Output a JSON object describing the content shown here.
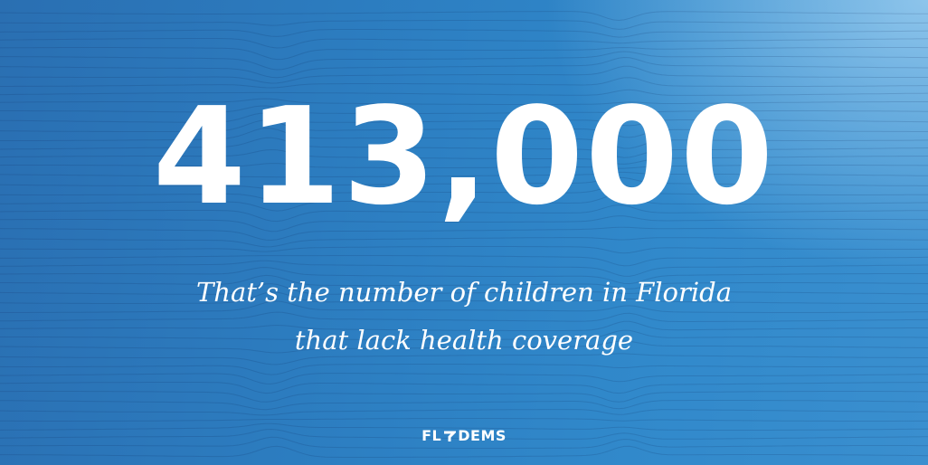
{
  "headline": "413,000",
  "subtitle": {
    "line1": "That’s the number of children in Florida",
    "line2": "that lack health coverage"
  },
  "logo": {
    "left": "FL",
    "right": "DEMS"
  }
}
